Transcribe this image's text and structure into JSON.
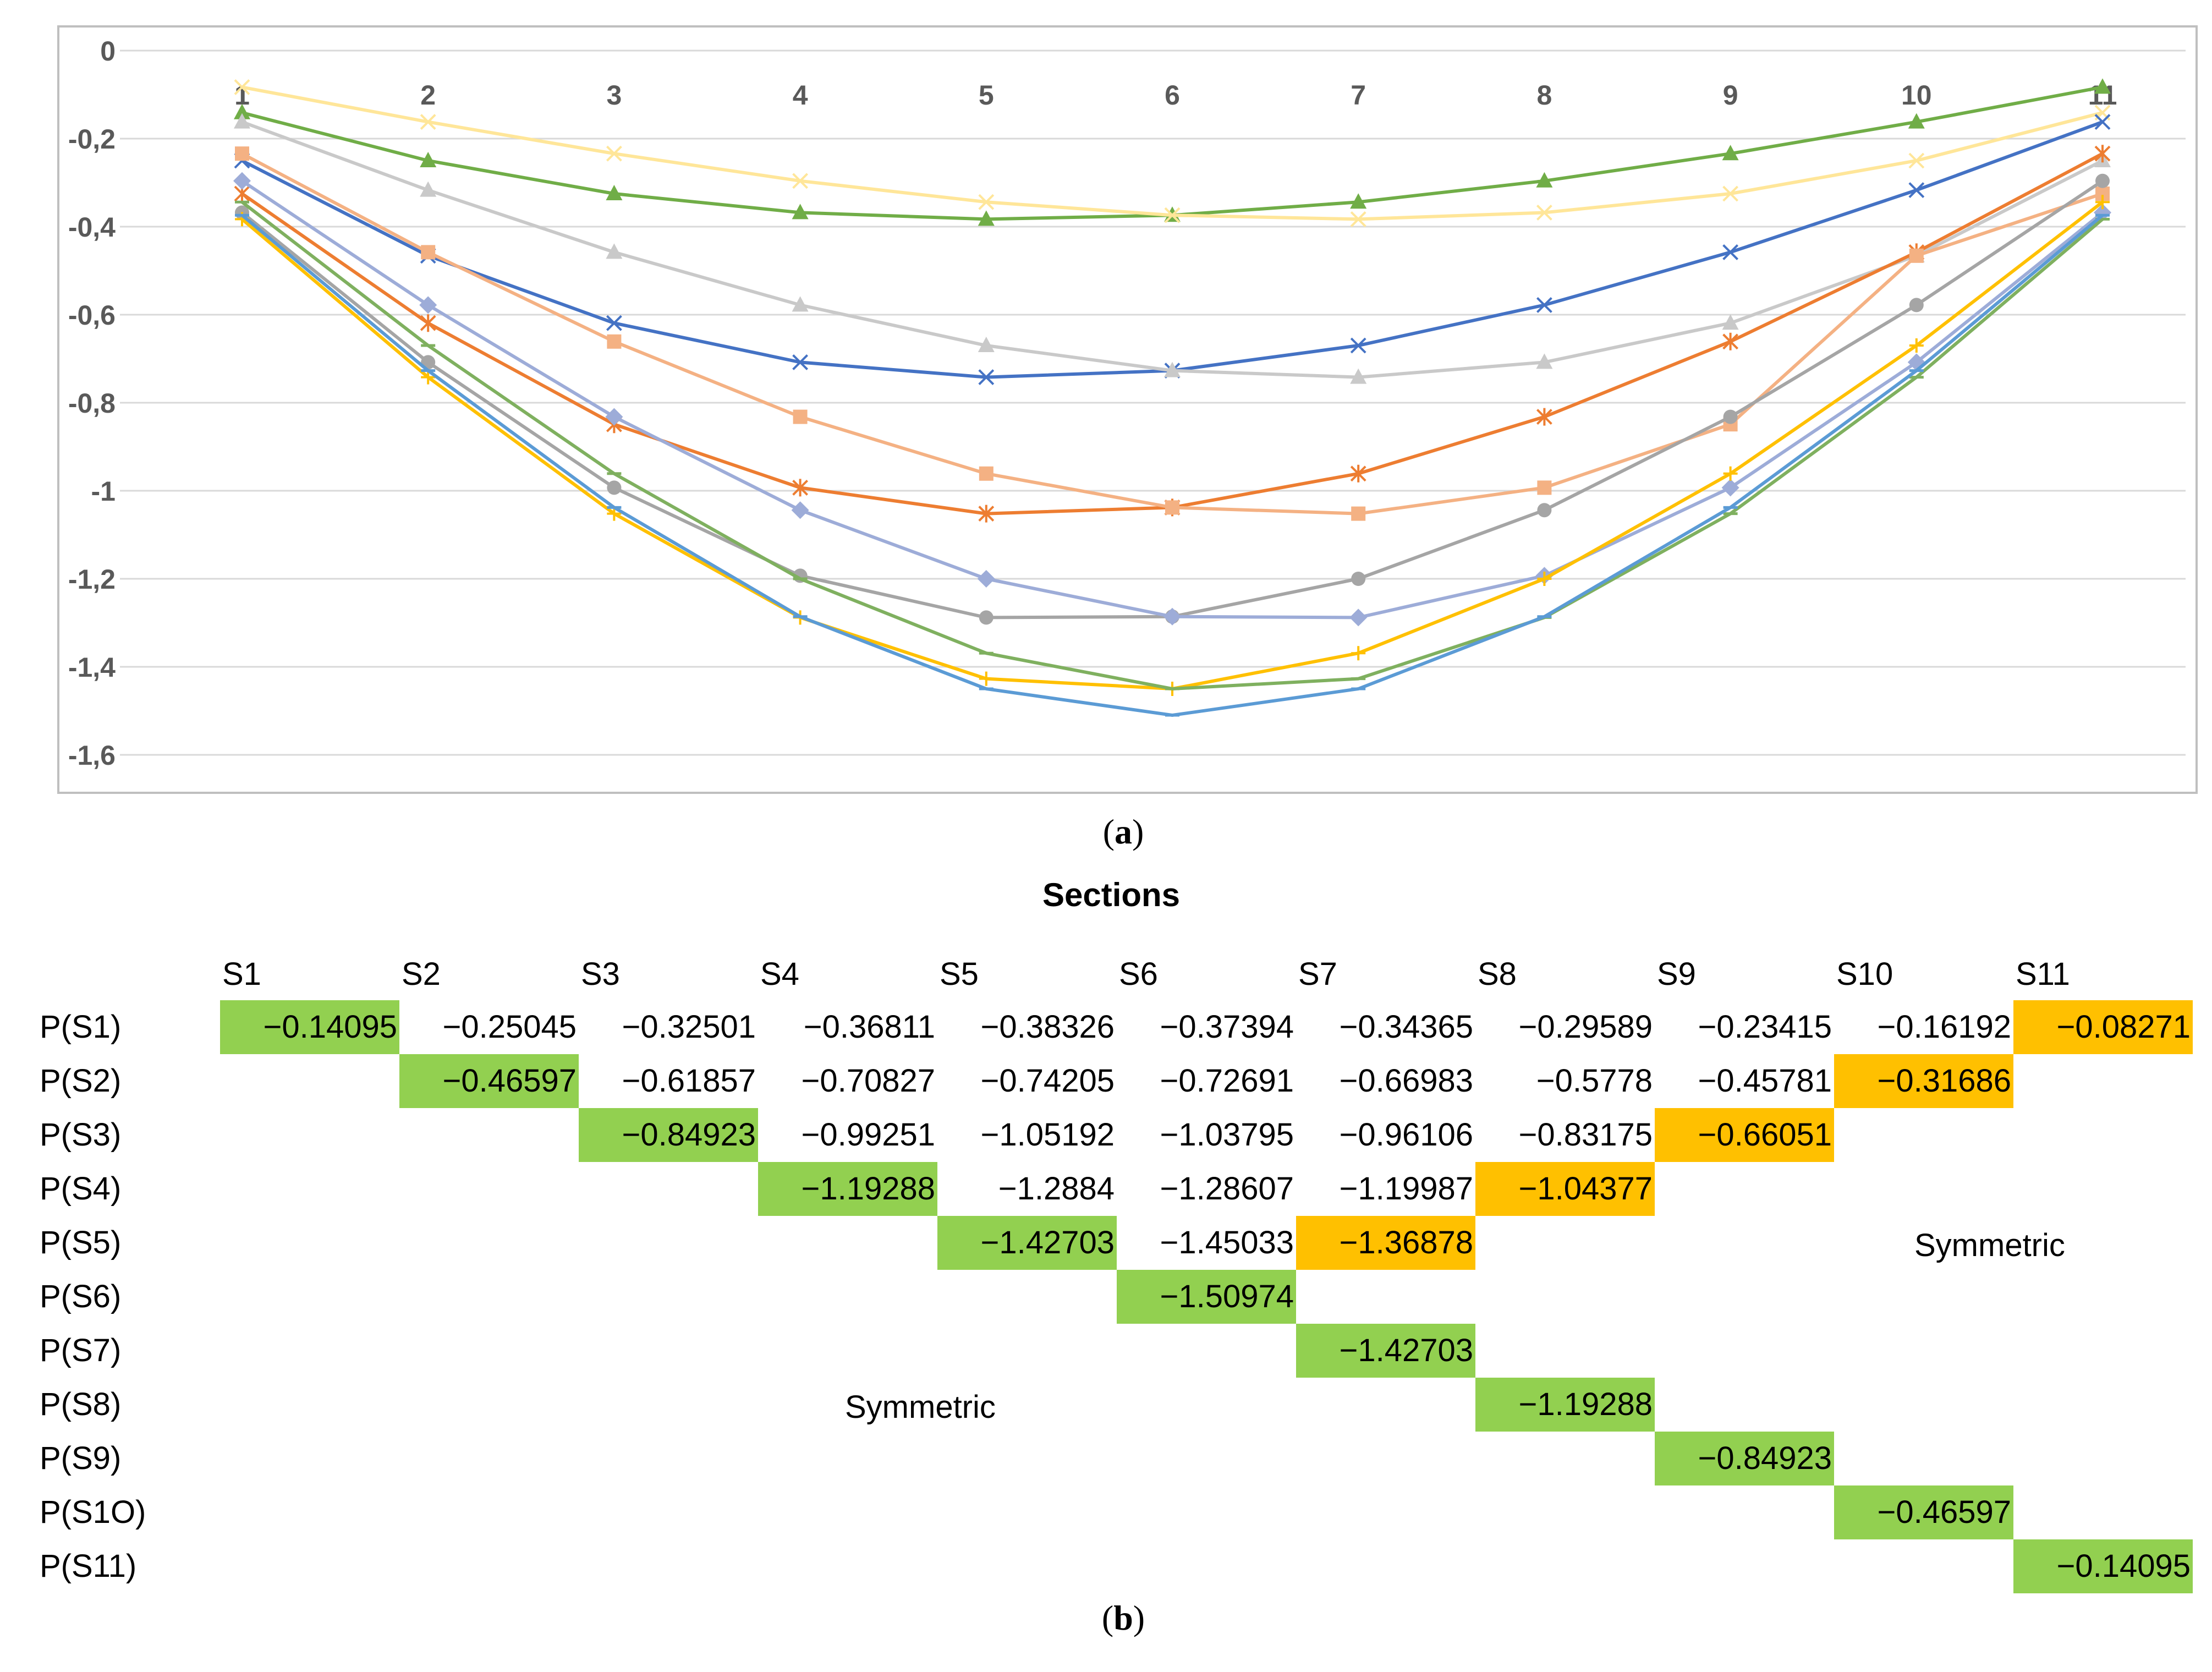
{
  "chart_data": {
    "type": "line",
    "x": [
      1,
      2,
      3,
      4,
      5,
      6,
      7,
      8,
      9,
      10,
      11
    ],
    "ylim": [
      -1.6,
      0
    ],
    "yticks": [
      "0",
      "-0,2",
      "-0,4",
      "-0,6",
      "-0,8",
      "-1",
      "-1,2",
      "-1,4",
      "-1,6"
    ],
    "xticks": [
      "1",
      "2",
      "3",
      "4",
      "5",
      "6",
      "7",
      "8",
      "9",
      "10",
      "11"
    ],
    "grid": true,
    "series": [
      {
        "color": "#70ad47",
        "marker": "triangle",
        "values": [
          -0.141,
          -0.25,
          -0.325,
          -0.368,
          -0.383,
          -0.374,
          -0.344,
          -0.296,
          -0.234,
          -0.162,
          -0.083
        ]
      },
      {
        "color": "#ffe699",
        "marker": "x",
        "values": [
          -0.083,
          -0.162,
          -0.234,
          -0.296,
          -0.344,
          -0.374,
          -0.383,
          -0.368,
          -0.325,
          -0.25,
          -0.141
        ]
      },
      {
        "color": "#4472c4",
        "marker": "x",
        "values": [
          -0.25,
          -0.466,
          -0.619,
          -0.708,
          -0.742,
          -0.727,
          -0.67,
          -0.578,
          -0.458,
          -0.317,
          -0.162
        ]
      },
      {
        "color": "#c9c9c9",
        "marker": "triangle",
        "values": [
          -0.162,
          -0.317,
          -0.458,
          -0.578,
          -0.67,
          -0.727,
          -0.742,
          -0.708,
          -0.619,
          -0.466,
          -0.25
        ]
      },
      {
        "color": "#ed7d31",
        "marker": "star",
        "values": [
          -0.325,
          -0.619,
          -0.849,
          -0.993,
          -1.052,
          -1.038,
          -0.961,
          -0.832,
          -0.661,
          -0.458,
          -0.234
        ]
      },
      {
        "color": "#f4b183",
        "marker": "square",
        "values": [
          -0.234,
          -0.458,
          -0.661,
          -0.832,
          -0.961,
          -1.038,
          -1.052,
          -0.993,
          -0.849,
          -0.466,
          -0.325
        ]
      },
      {
        "color": "#a5a5a5",
        "marker": "circle",
        "values": [
          -0.368,
          -0.708,
          -0.993,
          -1.193,
          -1.288,
          -1.286,
          -1.2,
          -1.044,
          -0.832,
          -0.578,
          -0.296
        ]
      },
      {
        "color": "#9dacd8",
        "marker": "diamond",
        "values": [
          -0.296,
          -0.578,
          -0.832,
          -1.044,
          -1.2,
          -1.286,
          -1.288,
          -1.193,
          -0.993,
          -0.708,
          -0.368
        ]
      },
      {
        "color": "#ffc000",
        "marker": "plus",
        "values": [
          -0.383,
          -0.742,
          -1.052,
          -1.288,
          -1.427,
          -1.45,
          -1.369,
          -1.2,
          -0.961,
          -0.67,
          -0.344
        ]
      },
      {
        "color": "#7fb05f",
        "marker": "dash",
        "values": [
          -0.344,
          -0.67,
          -0.961,
          -1.2,
          -1.369,
          -1.45,
          -1.427,
          -1.288,
          -1.052,
          -0.742,
          -0.383
        ]
      },
      {
        "color": "#5b9bd5",
        "marker": "dash",
        "values": [
          -0.374,
          -0.727,
          -1.038,
          -1.286,
          -1.45,
          -1.51,
          -1.45,
          -1.286,
          -1.038,
          -0.727,
          -0.374
        ]
      }
    ]
  },
  "captions": {
    "a": "a",
    "b": "b"
  },
  "table": {
    "title": "Sections",
    "columns": [
      "S1",
      "S2",
      "S3",
      "S4",
      "S5",
      "S6",
      "S7",
      "S8",
      "S9",
      "S10",
      "S11"
    ],
    "rows": [
      "P(S1)",
      "P(S2)",
      "P(S3)",
      "P(S4)",
      "P(S5)",
      "P(S6)",
      "P(S7)",
      "P(S8)",
      "P(S9)",
      "P(S1O)",
      "P(S11)"
    ],
    "cells": [
      [
        "−0.14095",
        "−0.25045",
        "−0.32501",
        "−0.36811",
        "−0.38326",
        "−0.37394",
        "−0.34365",
        "−0.29589",
        "−0.23415",
        "−0.16192",
        "−0.08271"
      ],
      [
        "−0.46597",
        "−0.61857",
        "−0.70827",
        "−0.74205",
        "−0.72691",
        "−0.66983",
        "−0.5778",
        "−0.45781",
        "−0.31686"
      ],
      [
        "−0.84923",
        "−0.99251",
        "−1.05192",
        "−1.03795",
        "−0.96106",
        "−0.83175",
        "−0.66051"
      ],
      [
        "−1.19288",
        "−1.2884",
        "−1.28607",
        "−1.19987",
        "−1.04377"
      ],
      [
        "−1.42703",
        "−1.45033",
        "−1.36878"
      ],
      [
        "−1.50974"
      ],
      [
        "−1.42703"
      ],
      [
        "−1.19288"
      ],
      [
        "−0.84923"
      ],
      [
        "−0.46597"
      ],
      [
        "−0.14095"
      ]
    ],
    "diagonal_color": "#92d050",
    "antidiagonal_color": "#ffc000",
    "symmetric_label_upper": "Symmetric",
    "symmetric_label_lower": "Symmetric"
  }
}
